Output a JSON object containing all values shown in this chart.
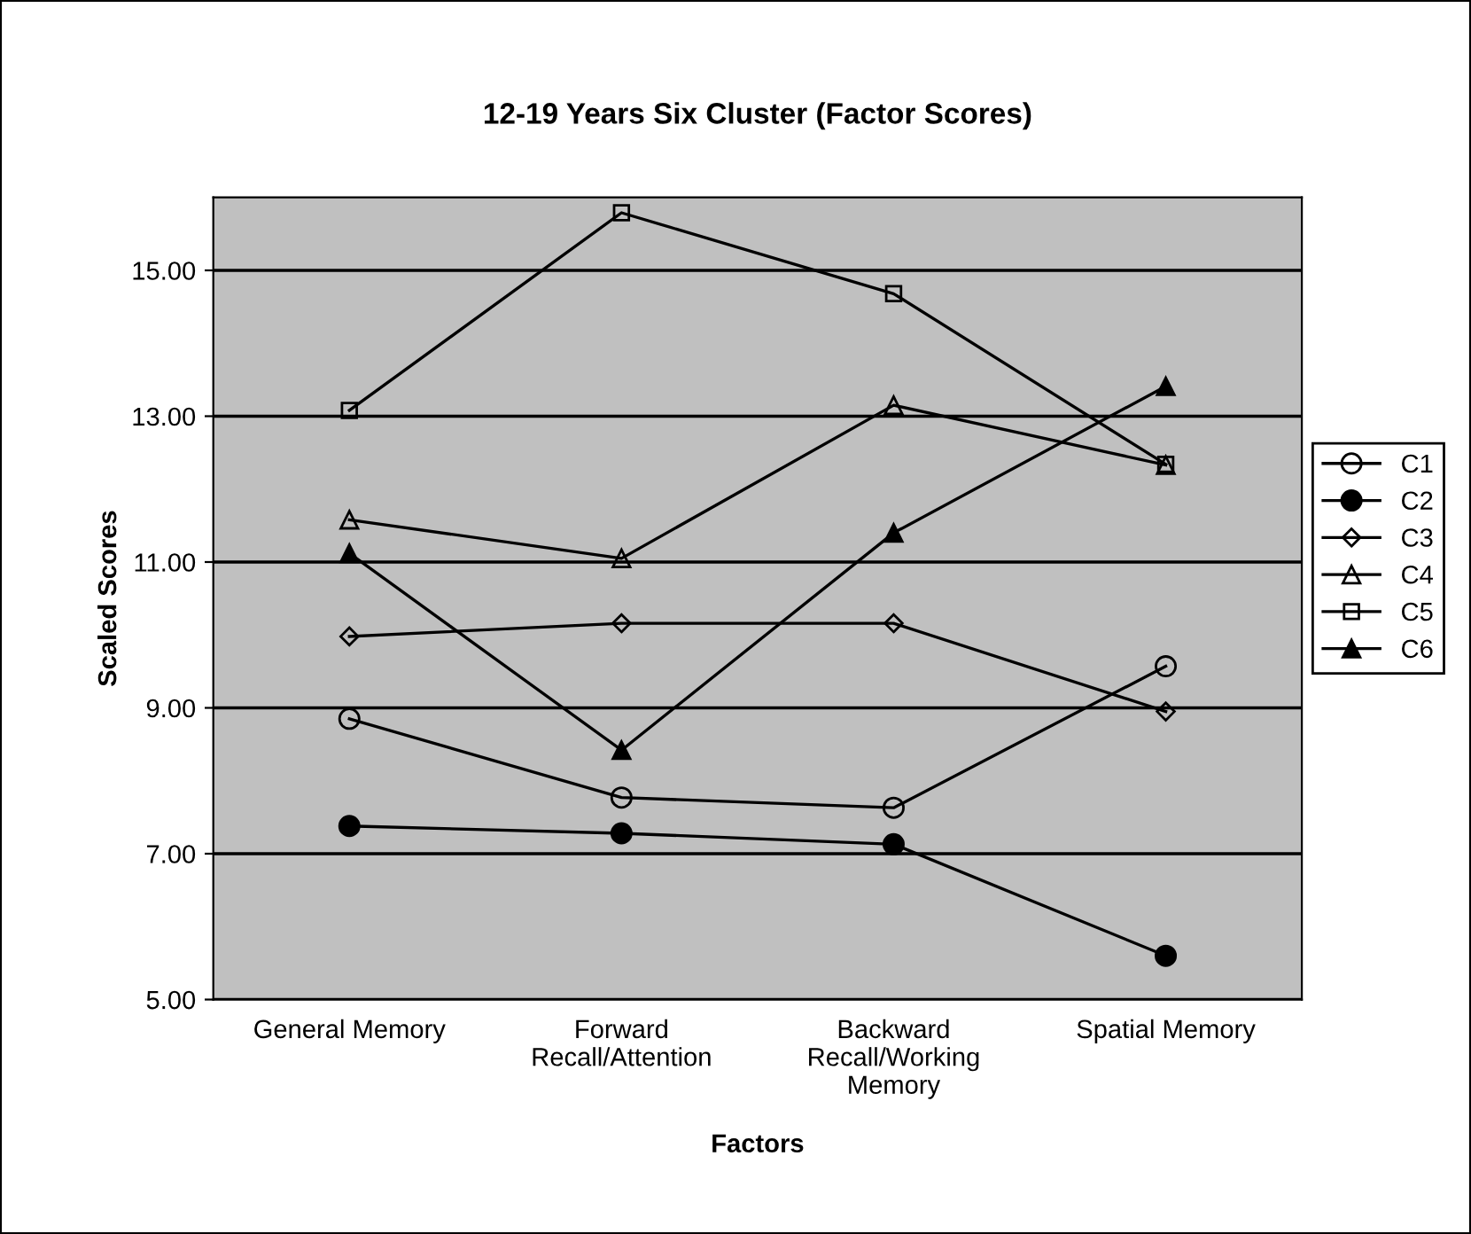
{
  "chart_data": {
    "type": "line",
    "title": "12-19 Years Six Cluster (Factor Scores)",
    "xlabel": "Factors",
    "ylabel": "Scaled Scores",
    "categories": [
      "General Memory",
      "Forward\nRecall/Attention",
      "Backward\nRecall/Working\nMemory",
      "Spatial Memory"
    ],
    "series": [
      {
        "name": "C1",
        "color": "#000000",
        "marker": "circle",
        "values": [
          8.85,
          7.77,
          7.63,
          9.57
        ]
      },
      {
        "name": "C2",
        "color": "#000000",
        "marker": "circle",
        "values": [
          7.38,
          7.28,
          7.13,
          5.6
        ]
      },
      {
        "name": "C3",
        "color": "#000000",
        "marker": "diamond",
        "values": [
          9.98,
          10.16,
          10.16,
          8.95
        ]
      },
      {
        "name": "C4",
        "color": "#000000",
        "marker": "triangle",
        "values": [
          11.58,
          11.05,
          13.15,
          12.33
        ]
      },
      {
        "name": "C5",
        "color": "#000000",
        "marker": "square",
        "values": [
          13.08,
          15.79,
          14.68,
          12.34
        ]
      },
      {
        "name": "C6",
        "color": "#000000",
        "marker": "triangle",
        "values": [
          11.12,
          8.42,
          11.4,
          13.41
        ]
      }
    ],
    "ylim": [
      5,
      16
    ],
    "yticks": [
      {
        "value": 5,
        "label": "5.00"
      },
      {
        "value": 7,
        "label": "7.00"
      },
      {
        "value": 9,
        "label": "9.00"
      },
      {
        "value": 11,
        "label": "11.00"
      },
      {
        "value": 13,
        "label": "13.00"
      },
      {
        "value": 15,
        "label": "15.00"
      }
    ],
    "grid": "y",
    "legend": "right",
    "line_style": "solid"
  }
}
